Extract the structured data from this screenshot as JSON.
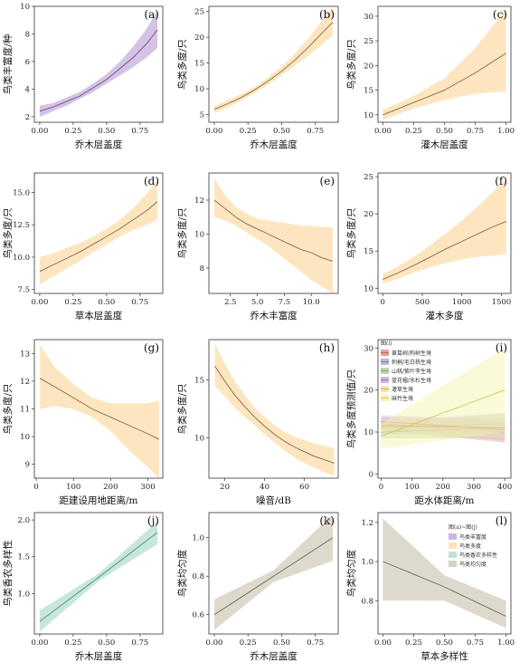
{
  "chart_data": [
    {
      "id": "a",
      "label": "(a)",
      "type": "line",
      "xlabel": "乔木层盖度",
      "ylabel": "鸟类丰富度/种",
      "xlim": [
        -0.04,
        0.92
      ],
      "ylim": [
        1.6,
        10
      ],
      "xticks": [
        "0.00",
        "0.25",
        "0.50",
        "0.75"
      ],
      "xtickv": [
        0,
        0.25,
        0.5,
        0.75
      ],
      "yticks": [
        "2",
        "4",
        "6",
        "8",
        "10"
      ],
      "ytickv": [
        2,
        4,
        6,
        8,
        10
      ],
      "color": "#cdb8e0",
      "line": "#6c4d86",
      "series": [
        {
          "x": [
            0,
            0.1,
            0.2,
            0.3,
            0.4,
            0.5,
            0.6,
            0.7,
            0.8,
            0.88
          ],
          "y": [
            2.4,
            2.7,
            3.1,
            3.5,
            4.1,
            4.7,
            5.5,
            6.3,
            7.3,
            8.3
          ],
          "lower": [
            2.0,
            2.4,
            2.8,
            3.3,
            3.8,
            4.4,
            5.0,
            5.6,
            6.3,
            7.0
          ],
          "upper": [
            2.8,
            3.0,
            3.4,
            3.8,
            4.4,
            5.1,
            6.0,
            7.1,
            8.4,
            9.7
          ]
        }
      ]
    },
    {
      "id": "b",
      "label": "(b)",
      "type": "line",
      "xlabel": "乔木层盖度",
      "ylabel": "鸟类多度/只",
      "xlim": [
        -0.04,
        0.92
      ],
      "ylim": [
        3.5,
        26
      ],
      "xticks": [
        "0.00",
        "0.25",
        "0.50",
        "0.75"
      ],
      "xtickv": [
        0,
        0.25,
        0.5,
        0.75
      ],
      "yticks": [
        "5",
        "10",
        "15",
        "20",
        "25"
      ],
      "ytickv": [
        5,
        10,
        15,
        20,
        25
      ],
      "color": "#fde2b4",
      "line": "#7a6a50",
      "series": [
        {
          "x": [
            0,
            0.1,
            0.2,
            0.3,
            0.4,
            0.5,
            0.6,
            0.7,
            0.8,
            0.88
          ],
          "y": [
            6.0,
            7.1,
            8.3,
            9.8,
            11.5,
            13.4,
            15.6,
            18.1,
            20.8,
            22.9
          ],
          "lower": [
            5.3,
            6.4,
            7.7,
            9.2,
            10.8,
            12.6,
            14.5,
            16.5,
            18.6,
            20.3
          ],
          "upper": [
            6.7,
            7.8,
            9.0,
            10.4,
            12.2,
            14.3,
            16.9,
            19.8,
            23.2,
            25.9
          ]
        }
      ]
    },
    {
      "id": "c",
      "label": "(c)",
      "type": "line",
      "xlabel": "灌木层盖度",
      "ylabel": "鸟类多度/只",
      "xlim": [
        -0.04,
        1.04
      ],
      "ylim": [
        8.5,
        32
      ],
      "xticks": [
        "0.00",
        "0.25",
        "0.50",
        "0.75",
        "1.00"
      ],
      "xtickv": [
        0,
        0.25,
        0.5,
        0.75,
        1
      ],
      "yticks": [
        "10",
        "15",
        "20",
        "25",
        "30"
      ],
      "ytickv": [
        10,
        15,
        20,
        25,
        30
      ],
      "color": "#fde2b4",
      "line": "#7a6a50",
      "series": [
        {
          "x": [
            0,
            0.25,
            0.5,
            0.75,
            1.0
          ],
          "y": [
            10.0,
            12.5,
            15.0,
            18.5,
            22.5
          ],
          "lower": [
            9.0,
            11.3,
            13.0,
            14.3,
            14.8
          ],
          "upper": [
            11.0,
            13.8,
            17.4,
            23.5,
            31.5
          ]
        }
      ]
    },
    {
      "id": "d",
      "label": "(d)",
      "type": "line",
      "xlabel": "草本层盖度",
      "ylabel": "鸟类多度/只",
      "xlim": [
        -0.04,
        0.92
      ],
      "ylim": [
        7.2,
        16.5
      ],
      "xticks": [
        "0.00",
        "0.25",
        "0.50",
        "0.75"
      ],
      "xtickv": [
        0,
        0.25,
        0.5,
        0.75
      ],
      "yticks": [
        "7.5",
        "10.0",
        "12.5",
        "15.0"
      ],
      "ytickv": [
        7.5,
        10,
        12.5,
        15
      ],
      "color": "#fde2b4",
      "line": "#7a6a50",
      "series": [
        {
          "x": [
            0,
            0.1,
            0.2,
            0.3,
            0.4,
            0.5,
            0.6,
            0.7,
            0.8,
            0.88
          ],
          "y": [
            8.9,
            9.4,
            9.9,
            10.4,
            11.0,
            11.6,
            12.2,
            12.9,
            13.6,
            14.3
          ],
          "lower": [
            7.9,
            8.5,
            9.1,
            9.7,
            10.4,
            11.0,
            11.6,
            12.1,
            12.5,
            12.9
          ],
          "upper": [
            10.0,
            10.3,
            10.7,
            11.1,
            11.6,
            12.2,
            12.9,
            13.8,
            14.9,
            16.0
          ]
        }
      ]
    },
    {
      "id": "e",
      "label": "(e)",
      "type": "line",
      "xlabel": "乔木丰富度",
      "ylabel": "鸟类多度/只",
      "xlim": [
        0.5,
        12.5
      ],
      "ylim": [
        6.5,
        13.6
      ],
      "xticks": [
        "2.5",
        "5.0",
        "7.5",
        "10.0"
      ],
      "xtickv": [
        2.5,
        5,
        7.5,
        10
      ],
      "yticks": [
        "8",
        "10",
        "12"
      ],
      "ytickv": [
        8,
        10,
        12
      ],
      "color": "#fde2b4",
      "line": "#7a6a50",
      "series": [
        {
          "x": [
            1,
            2,
            3,
            4,
            5,
            6,
            7,
            8,
            9,
            10,
            11,
            12
          ],
          "y": [
            12.0,
            11.5,
            11.0,
            10.6,
            10.3,
            10.0,
            9.7,
            9.4,
            9.1,
            8.9,
            8.6,
            8.4
          ],
          "lower": [
            11.0,
            10.8,
            10.5,
            10.1,
            9.7,
            9.3,
            8.8,
            8.3,
            7.8,
            7.3,
            6.9,
            6.5
          ],
          "upper": [
            13.3,
            12.3,
            11.6,
            11.2,
            10.9,
            10.8,
            10.7,
            10.6,
            10.5,
            10.5,
            10.4,
            10.4
          ]
        }
      ]
    },
    {
      "id": "f",
      "label": "(f)",
      "type": "line",
      "xlabel": "灌木多度",
      "ylabel": "鸟类多度/只",
      "xlim": [
        -60,
        1620
      ],
      "ylim": [
        9.3,
        25.5
      ],
      "xticks": [
        "0",
        "500",
        "1000",
        "1500"
      ],
      "xtickv": [
        0,
        500,
        1000,
        1500
      ],
      "yticks": [
        "10",
        "15",
        "20",
        "25"
      ],
      "ytickv": [
        10,
        15,
        20,
        25
      ],
      "color": "#fde2b4",
      "line": "#7a6a50",
      "series": [
        {
          "x": [
            0,
            200,
            400,
            600,
            800,
            1000,
            1200,
            1400,
            1560
          ],
          "y": [
            11.2,
            12.1,
            13.1,
            14.2,
            15.3,
            16.3,
            17.3,
            18.3,
            19.0
          ],
          "lower": [
            10.6,
            11.3,
            12.1,
            12.8,
            13.4,
            13.9,
            14.2,
            14.4,
            14.6
          ],
          "upper": [
            11.9,
            13.0,
            14.3,
            15.8,
            17.4,
            19.1,
            21.0,
            23.0,
            24.6
          ]
        }
      ]
    },
    {
      "id": "g",
      "label": "(g)",
      "type": "line",
      "xlabel": "距建设用地距离/m",
      "ylabel": "鸟类多度/只",
      "xlim": [
        -5,
        340
      ],
      "ylim": [
        8.5,
        13.5
      ],
      "xticks": [
        "0",
        "100",
        "200",
        "300"
      ],
      "xtickv": [
        0,
        100,
        200,
        300
      ],
      "yticks": [
        "9",
        "10",
        "11",
        "12",
        "13"
      ],
      "ytickv": [
        9,
        10,
        11,
        12,
        13
      ],
      "color": "#fde2b4",
      "line": "#7a6a50",
      "series": [
        {
          "x": [
            10,
            50,
            100,
            150,
            200,
            250,
            300,
            330
          ],
          "y": [
            12.1,
            11.8,
            11.4,
            11.0,
            10.7,
            10.4,
            10.1,
            9.9
          ],
          "lower": [
            11.0,
            11.1,
            11.0,
            10.7,
            10.2,
            9.5,
            8.9,
            8.5
          ],
          "upper": [
            13.3,
            12.5,
            11.9,
            11.4,
            11.2,
            11.2,
            11.2,
            11.3
          ]
        }
      ]
    },
    {
      "id": "h",
      "label": "(h)",
      "type": "line",
      "xlabel": "噪音/dB",
      "ylabel": "鸟类多度/只",
      "xlim": [
        12,
        77
      ],
      "ylim": [
        6.5,
        18.5
      ],
      "xticks": [
        "20",
        "40",
        "60"
      ],
      "xtickv": [
        20,
        40,
        60
      ],
      "yticks": [
        "10",
        "15"
      ],
      "ytickv": [
        10,
        15
      ],
      "color": "#fde2b4",
      "line": "#7a6a50",
      "series": [
        {
          "x": [
            15,
            20,
            25,
            30,
            35,
            40,
            45,
            50,
            55,
            60,
            65,
            70,
            75
          ],
          "y": [
            16.2,
            14.9,
            13.7,
            12.7,
            11.8,
            11.0,
            10.3,
            9.7,
            9.2,
            8.8,
            8.4,
            8.1,
            7.8
          ],
          "lower": [
            14.5,
            13.6,
            12.6,
            11.8,
            11.1,
            10.3,
            9.6,
            8.9,
            8.3,
            7.8,
            7.4,
            7.0,
            6.7
          ],
          "upper": [
            18.2,
            16.4,
            14.9,
            13.7,
            12.6,
            11.8,
            11.1,
            10.5,
            10.1,
            9.8,
            9.5,
            9.3,
            9.1
          ]
        }
      ]
    },
    {
      "id": "i",
      "label": "(i)",
      "type": "line",
      "xlabel": "距水体距离/m",
      "ylabel": "鸟类多度预测值/只",
      "xlim": [
        -10,
        420
      ],
      "ylim": [
        -1,
        32
      ],
      "xticks": [
        "0",
        "100",
        "200",
        "300",
        "400"
      ],
      "xtickv": [
        0,
        100,
        200,
        300,
        400
      ],
      "yticks": [
        "0",
        "10",
        "20",
        "30"
      ],
      "ytickv": [
        0,
        10,
        20,
        30
      ],
      "legend_title": "图(i)",
      "legend": [
        "黄葛树/构树生境",
        "刺桐/毛白杨生境",
        "山桃/紫叶李生境",
        "蓝花楹/水杉生境",
        "灌草生境",
        "麻竹生境"
      ],
      "series": [
        {
          "name": "黄葛树/构树生境",
          "color": "#e8a09a",
          "line": "#b35b55",
          "x": [
            0,
            400
          ],
          "y": [
            12,
            10
          ],
          "lower": [
            10.5,
            7.5
          ],
          "upper": [
            13.5,
            12.5
          ]
        },
        {
          "name": "刺桐/毛白杨生境",
          "color": "#b8b8d8",
          "line": "#7070a8",
          "x": [
            0,
            400
          ],
          "y": [
            11,
            12
          ],
          "lower": [
            9.5,
            9.5
          ],
          "upper": [
            12.5,
            14.5
          ]
        },
        {
          "name": "山桃/紫叶李生境",
          "color": "#b8d8b0",
          "line": "#6f9a63",
          "x": [
            0,
            400
          ],
          "y": [
            10,
            11
          ],
          "lower": [
            8.5,
            8.5
          ],
          "upper": [
            11.5,
            13.5
          ]
        },
        {
          "name": "蓝花楹/水杉生境",
          "color": "#cdb8e0",
          "line": "#8a6aa8",
          "x": [
            0,
            400
          ],
          "y": [
            12.5,
            10.5
          ],
          "lower": [
            11,
            8
          ],
          "upper": [
            14,
            13
          ]
        },
        {
          "name": "灌草生境",
          "color": "#fde2b4",
          "line": "#c89a55",
          "x": [
            0,
            400
          ],
          "y": [
            11.5,
            11
          ],
          "lower": [
            10,
            8.5
          ],
          "upper": [
            13,
            13.5
          ]
        },
        {
          "name": "麻竹生境",
          "color": "#f4f4a8",
          "line": "#c8c860",
          "x": [
            0,
            400
          ],
          "y": [
            9,
            20
          ],
          "lower": [
            6,
            10
          ],
          "upper": [
            12,
            30
          ]
        }
      ]
    },
    {
      "id": "j",
      "label": "(j)",
      "type": "line",
      "xlabel": "乔木层盖度",
      "ylabel": "鸟类香农多样性",
      "xlim": [
        -0.04,
        0.92
      ],
      "ylim": [
        0.45,
        2.1
      ],
      "xticks": [
        "0.00",
        "0.25",
        "0.50",
        "0.75"
      ],
      "xtickv": [
        0,
        0.25,
        0.5,
        0.75
      ],
      "yticks": [
        "1.0",
        "1.5",
        "2.0"
      ],
      "ytickv": [
        1,
        1.5,
        2
      ],
      "color": "#bde3d6",
      "line": "#4f8a78",
      "series": [
        {
          "x": [
            0,
            0.44,
            0.88
          ],
          "y": [
            0.62,
            1.22,
            1.83
          ],
          "lower": [
            0.48,
            1.17,
            1.67
          ],
          "upper": [
            0.77,
            1.27,
            1.98
          ]
        }
      ]
    },
    {
      "id": "k",
      "label": "(k)",
      "type": "line",
      "xlabel": "乔木层盖度",
      "ylabel": "鸟类均匀度",
      "xlim": [
        -0.04,
        0.92
      ],
      "ylim": [
        0.5,
        1.13
      ],
      "xticks": [
        "0.00",
        "0.25",
        "0.50",
        "0.75"
      ],
      "xtickv": [
        0,
        0.25,
        0.5,
        0.75
      ],
      "yticks": [
        "0.6",
        "0.8",
        "1.0"
      ],
      "ytickv": [
        0.6,
        0.8,
        1.0
      ],
      "color": "#d8d2c4",
      "line": "#6b6456",
      "series": [
        {
          "x": [
            0,
            0.44,
            0.88
          ],
          "y": [
            0.6,
            0.8,
            1.0
          ],
          "lower": [
            0.52,
            0.77,
            0.88
          ],
          "upper": [
            0.68,
            0.83,
            1.12
          ]
        }
      ]
    },
    {
      "id": "l",
      "label": "(l)",
      "type": "line",
      "xlabel": "草本多样性",
      "ylabel": "鸟类均匀度",
      "xlim": [
        -0.04,
        1.04
      ],
      "ylim": [
        0.63,
        1.25
      ],
      "xticks": [
        "0.00",
        "0.25",
        "0.50",
        "0.75",
        "1.00"
      ],
      "xtickv": [
        0,
        0.25,
        0.5,
        0.75,
        1
      ],
      "yticks": [
        "0.8",
        "1.0",
        "1.2"
      ],
      "ytickv": [
        0.8,
        1.0,
        1.2
      ],
      "color": "#d8d2c4",
      "line": "#6b6456",
      "legend_title": "图(a)~图(j)",
      "legend": [
        "鸟类丰富度",
        "鸟类多度",
        "鸟类香农多样性",
        "鸟类均匀度"
      ],
      "legend_colors": [
        "#cdb8e0",
        "#fde2b4",
        "#bde3d6",
        "#d8d2c4"
      ],
      "series": [
        {
          "x": [
            0,
            0.5,
            1.0
          ],
          "y": [
            1.0,
            0.87,
            0.72
          ],
          "lower": [
            0.8,
            0.8,
            0.66
          ],
          "upper": [
            1.22,
            0.93,
            0.8
          ]
        }
      ]
    }
  ]
}
